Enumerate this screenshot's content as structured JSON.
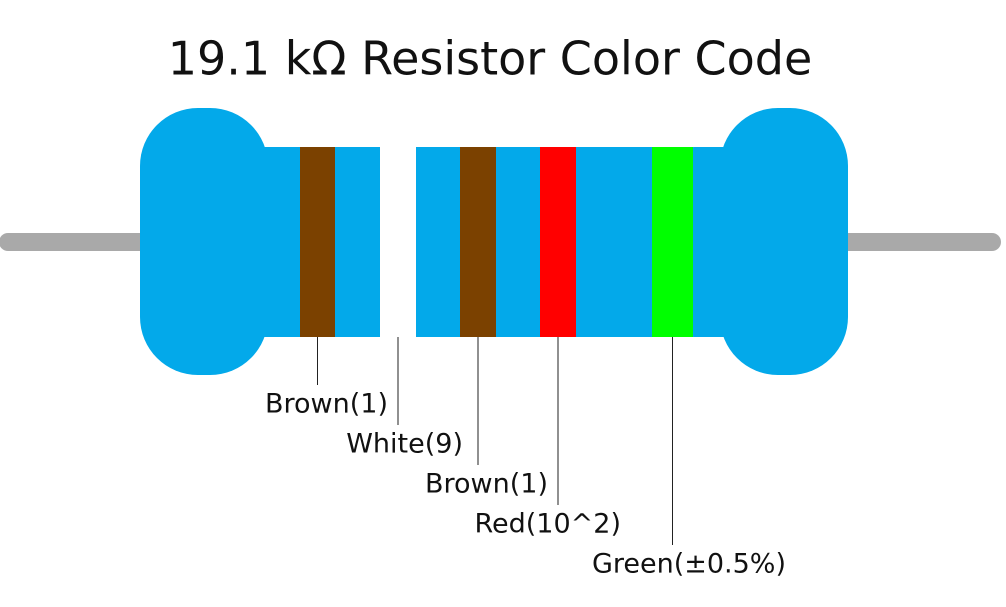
{
  "header": {
    "title": "19.1 kΩ Resistor Color Code"
  },
  "bands": [
    {
      "label": "Brown(1)",
      "color": "#7b4100"
    },
    {
      "label": "White(9)",
      "color": "#ffffff"
    },
    {
      "label": "Brown(1)",
      "color": "#7b4100"
    },
    {
      "label": "Red(10^2)",
      "color": "#ff0000"
    },
    {
      "label": "Green(±0.5%)",
      "color": "#00ff00"
    }
  ]
}
